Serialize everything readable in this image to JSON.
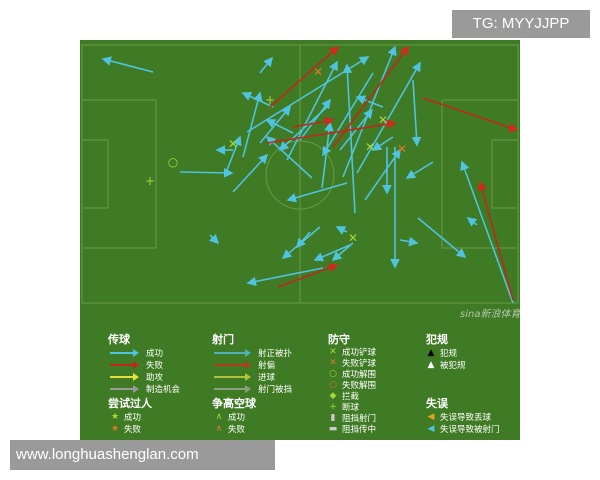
{
  "watermark_top": "TG: MYYJJPP",
  "watermark_bottom": "www.longhuashenglan.com",
  "brand_watermark": "sina新浪体育",
  "colors": {
    "pitch": "#3f7a24",
    "pass_success": "#4fc3e0",
    "pass_fail": "#c0281c",
    "assist": "#e8e03a",
    "chance": "#9a9a9a",
    "tackle_success": "#a6d83a",
    "tackle_fail": "#e07a2a"
  },
  "legend": {
    "passing": {
      "title": "传球",
      "items": [
        "成功",
        "失败",
        "助攻",
        "制造机会"
      ]
    },
    "shooting": {
      "title": "射门",
      "items": [
        "射正被扑",
        "射偏",
        "进球",
        "射门被挡"
      ]
    },
    "defense": {
      "title": "防守",
      "items": [
        "成功铲球",
        "失败铲球",
        "成功解围",
        "失败解围",
        "拦截",
        "断球",
        "阻挡射门",
        "阻挡传中"
      ]
    },
    "fouls": {
      "title": "犯规",
      "items": [
        "犯规",
        "被犯规"
      ]
    },
    "dribble": {
      "title": "尝试过人",
      "items": [
        "成功",
        "失败"
      ]
    },
    "aerial": {
      "title": "争高空球",
      "items": [
        "成功",
        "失败"
      ]
    },
    "errors": {
      "title": "失误",
      "items": [
        "失误导致丢球",
        "失误导致被射门"
      ]
    }
  }
}
